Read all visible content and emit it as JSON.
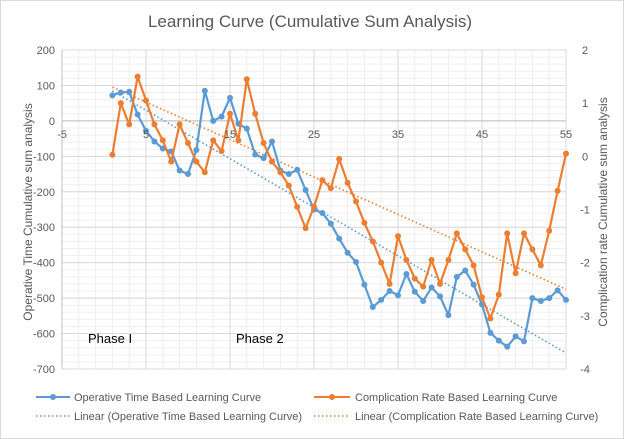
{
  "chart_data": {
    "type": "line",
    "title": "Learning Curve (Cumulative Sum Analysis)",
    "ylabel": "Operative Time Cumulative sum analysis",
    "y2label": "Complication rate Cumulative sum analysis",
    "xlim": [
      -5,
      55
    ],
    "ylim": [
      -700,
      200
    ],
    "y2lim": [
      -4,
      2
    ],
    "xticks": [
      "-5",
      "5",
      "15",
      "25",
      "35",
      "45",
      "55"
    ],
    "xtick_values": [
      -5,
      5,
      15,
      25,
      35,
      45,
      55
    ],
    "yticks": [
      "200",
      "100",
      "0",
      "-100",
      "-200",
      "-300",
      "-400",
      "-500",
      "-600",
      "-700"
    ],
    "ytick_values": [
      200,
      100,
      0,
      -100,
      -200,
      -300,
      -400,
      -500,
      -600,
      -700
    ],
    "y2ticks": [
      "2",
      "1",
      "0",
      "-1",
      "-2",
      "-3",
      "-4"
    ],
    "y2tick_values": [
      2,
      1,
      0,
      -1,
      -2,
      -3,
      -4
    ],
    "grid": true,
    "legend_position": "bottom",
    "annotations": [
      {
        "text": "Phase I",
        "x": 1,
        "y": -620
      },
      {
        "text": "Phase 2",
        "x": 17,
        "y": -620
      }
    ],
    "series": [
      {
        "name": "Operative Time Based Learning Curve",
        "axis": "left",
        "color": "#5b9bd5",
        "x": [
          1,
          2,
          3,
          4,
          5,
          6,
          7,
          8,
          9,
          10,
          11,
          12,
          13,
          14,
          15,
          16,
          17,
          18,
          19,
          20,
          21,
          22,
          23,
          24,
          25,
          26,
          27,
          28,
          29,
          30,
          31,
          32,
          33,
          34,
          35,
          36,
          37,
          38,
          39,
          40,
          41,
          42,
          43,
          44,
          45,
          46,
          47,
          48,
          49,
          50,
          51,
          52,
          53,
          54,
          55
        ],
        "values": [
          72,
          80,
          82,
          18,
          -28,
          -58,
          -78,
          -86,
          -140,
          -150,
          -82,
          85,
          0,
          12,
          65,
          -8,
          -22,
          -95,
          -105,
          -58,
          -140,
          -150,
          -138,
          -195,
          -250,
          -260,
          -290,
          -332,
          -372,
          -398,
          -462,
          -525,
          -505,
          -480,
          -492,
          -432,
          -482,
          -508,
          -470,
          -495,
          -548,
          -440,
          -422,
          -462,
          -518,
          -598,
          -620,
          -637,
          -608,
          -622,
          -500,
          -508,
          -500,
          -478,
          -505
        ]
      },
      {
        "name": "Complication Rate Based Learning Curve",
        "axis": "right",
        "color": "#ed7d31",
        "x": [
          1,
          2,
          3,
          4,
          5,
          6,
          7,
          8,
          9,
          10,
          11,
          12,
          13,
          14,
          15,
          16,
          17,
          18,
          19,
          20,
          21,
          22,
          23,
          24,
          25,
          26,
          27,
          28,
          29,
          30,
          31,
          32,
          33,
          34,
          35,
          36,
          37,
          38,
          39,
          40,
          41,
          42,
          43,
          44,
          45,
          46,
          47,
          48,
          49,
          50,
          51,
          52,
          53,
          54,
          55
        ],
        "values": [
          0.03,
          1.0,
          0.6,
          1.5,
          1.05,
          0.6,
          0.3,
          -0.1,
          0.6,
          0.25,
          -0.1,
          -0.3,
          0.3,
          0.1,
          0.8,
          0.3,
          1.45,
          0.8,
          0.25,
          -0.1,
          -0.3,
          -0.55,
          -0.95,
          -1.35,
          -0.95,
          -0.45,
          -0.6,
          -0.05,
          -0.5,
          -0.85,
          -1.25,
          -1.6,
          -2.0,
          -2.4,
          -1.5,
          -1.95,
          -2.3,
          -2.45,
          -1.95,
          -2.4,
          -1.95,
          -1.45,
          -1.75,
          -2.05,
          -2.65,
          -3.05,
          -2.6,
          -1.45,
          -2.2,
          -1.45,
          -1.75,
          -2.05,
          -1.4,
          -0.65,
          0.05
        ]
      },
      {
        "name": "Linear (Operative Time Based Learning Curve)",
        "axis": "left",
        "color": "#5b9bd5",
        "style": "dotted",
        "x": [
          1,
          55
        ],
        "values": [
          85,
          -655
        ]
      },
      {
        "name": "Linear (Complication Rate Based Learning Curve)",
        "axis": "right",
        "color": "#ed7d31",
        "style": "dotted",
        "x": [
          1,
          55
        ],
        "values": [
          1.3,
          -2.5
        ]
      }
    ]
  }
}
